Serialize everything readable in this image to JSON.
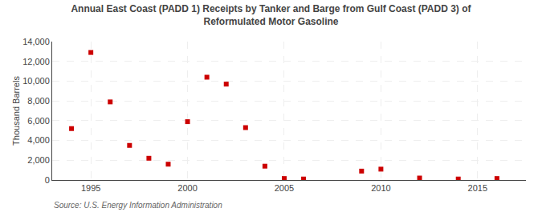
{
  "chart_data": {
    "type": "scatter",
    "title": "Annual East Coast (PADD 1) Receipts by Tanker and Barge from Gulf Coast (PADD 3) of\nReformulated Motor Gasoline",
    "ylabel": "Thousand Barrels",
    "source": "Source: U.S. Energy Information Administration",
    "x": [
      1994,
      1995,
      1996,
      1997,
      1998,
      1999,
      2000,
      2001,
      2002,
      2003,
      2004,
      2005,
      2006,
      2009,
      2010,
      2012,
      2014,
      2016
    ],
    "values": [
      5200,
      12900,
      7900,
      3500,
      2200,
      1600,
      5900,
      10400,
      9700,
      5300,
      1400,
      150,
      100,
      900,
      1100,
      200,
      100,
      150
    ],
    "color": "#cc0000",
    "marker": "square",
    "xlim": [
      1993.0,
      2017.5
    ],
    "xticks": [
      1995,
      2000,
      2005,
      2010,
      2015
    ],
    "ylim": [
      0,
      14000
    ],
    "yticks": [
      0,
      {
        "value": 2000,
        "label": "2,000"
      },
      {
        "value": 4000,
        "label": "4,000"
      },
      {
        "value": 6000,
        "label": "6,000"
      },
      {
        "value": 8000,
        "label": "8,000"
      },
      {
        "value": 10000,
        "label": "10,000"
      },
      {
        "value": 12000,
        "label": "12,000"
      },
      {
        "value": 14000,
        "label": "14,000"
      }
    ],
    "grid": true
  }
}
